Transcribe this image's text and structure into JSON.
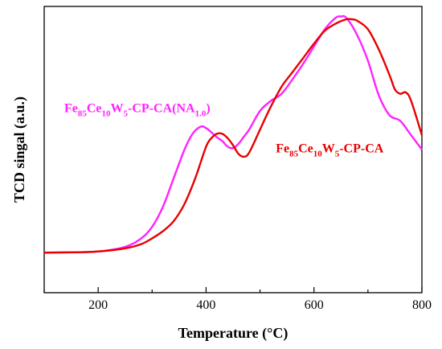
{
  "chart_data": {
    "type": "line",
    "xlabel": "Temperature (°C)",
    "ylabel": "TCD singal (a.u.)",
    "xlim": [
      100,
      800
    ],
    "ylim": [
      0,
      100
    ],
    "x_ticks": [
      "200",
      "400",
      "600",
      "800"
    ],
    "y_ticks_shown": false,
    "grid": false,
    "series": [
      {
        "name": "Fe85Ce10W5-CP-CA(NA1.0)",
        "label_parts": {
          "pre": "Fe",
          "sub1": "85",
          "mid1": "Ce",
          "sub2": "10",
          "mid2": "W",
          "sub3": "5",
          "mid3": "-CP-CA(NA",
          "sub4": "1.0",
          "post": ")"
        },
        "color": "#ff22ff",
        "x": [
          100,
          150,
          200,
          250,
          280,
          300,
          320,
          340,
          360,
          375,
          390,
          400,
          410,
          420,
          430,
          440,
          450,
          460,
          470,
          480,
          500,
          520,
          540,
          560,
          580,
          600,
          620,
          640,
          650,
          660,
          680,
          700,
          720,
          740,
          760,
          780,
          800
        ],
        "y": [
          14,
          14.1,
          14.4,
          16,
          19,
          23,
          30,
          40,
          50,
          55.5,
          58,
          57.5,
          56,
          54.3,
          53,
          51,
          50.5,
          52,
          54.5,
          57,
          63.5,
          67,
          69.5,
          74.5,
          80,
          86,
          92,
          96,
          96.5,
          96,
          90,
          81,
          69,
          62,
          60,
          55,
          50
        ]
      },
      {
        "name": "Fe85Ce10W5-CP-CA",
        "label_parts": {
          "pre": "Fe",
          "sub1": "85",
          "mid1": "Ce",
          "sub2": "10",
          "mid2": "W",
          "sub3": "5",
          "mid3": "-CP-CA",
          "sub4": "",
          "post": ""
        },
        "color": "#e80000",
        "x": [
          100,
          150,
          200,
          250,
          280,
          300,
          320,
          340,
          360,
          380,
          400,
          410,
          420,
          430,
          440,
          450,
          460,
          470,
          480,
          500,
          520,
          540,
          560,
          580,
          600,
          620,
          640,
          660,
          670,
          680,
          700,
          720,
          740,
          750,
          760,
          770,
          780,
          800
        ],
        "y": [
          14,
          14.1,
          14.4,
          15.5,
          17,
          19,
          21.5,
          25,
          31,
          40,
          51,
          54,
          55.5,
          55.5,
          54,
          51.5,
          48.5,
          47.5,
          49,
          57,
          65,
          72,
          77,
          82,
          87,
          91.5,
          94,
          95.5,
          95.5,
          95,
          92,
          85,
          76,
          71,
          69.5,
          70,
          67,
          55
        ]
      }
    ],
    "annotations": [
      {
        "series": 0,
        "anchor": "start",
        "at_x": 100,
        "at_y": 63
      },
      {
        "series": 1,
        "anchor": "start",
        "at_x": 492,
        "at_y": 49
      }
    ]
  }
}
